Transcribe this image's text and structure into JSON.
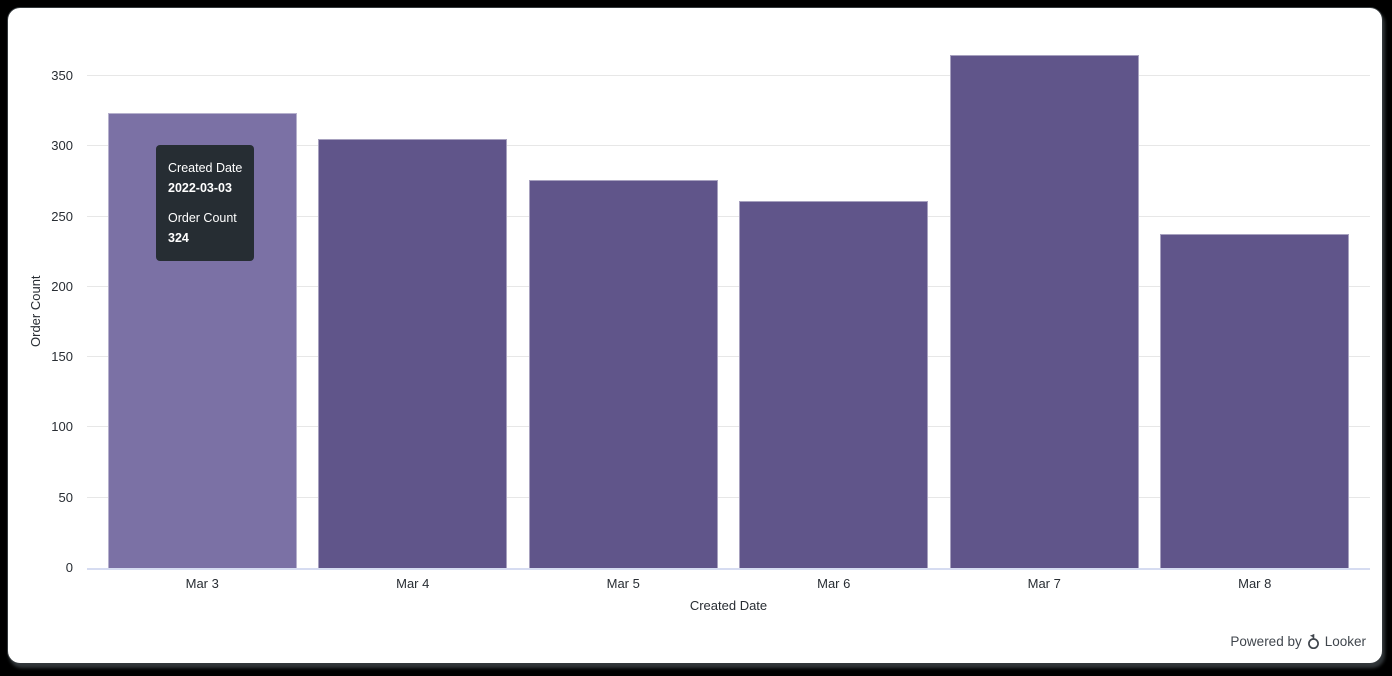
{
  "page": {
    "powered_by_label": "Powered by",
    "brand_name": "Looker"
  },
  "colors": {
    "page_bg": "#000000",
    "card_bg": "#ffffff",
    "powered_text": "#40464d"
  },
  "tooltip": {
    "dimension_label": "Created Date",
    "dimension_value": "2022-03-03",
    "measure_label": "Order Count",
    "measure_value": "324"
  },
  "chart_data": {
    "type": "bar",
    "title": "",
    "xlabel": "Created Date",
    "ylabel": "Order Count",
    "categories": [
      "Mar 3",
      "Mar 4",
      "Mar 5",
      "Mar 6",
      "Mar 7",
      "Mar 8"
    ],
    "values": [
      324,
      305,
      276,
      261,
      365,
      238
    ],
    "ylim": [
      0,
      365
    ],
    "yticks": [
      0,
      50,
      100,
      150,
      200,
      250,
      300,
      350
    ],
    "grid": true,
    "legend": "none",
    "hovered_index": 0,
    "hovered_tooltip": {
      "x": "2022-03-03",
      "y": 324
    },
    "colors": {
      "bar": "#60558a",
      "bar_hover": "#7b71a5",
      "bar_border": "#ffffff73",
      "grid": "#e7e7e7",
      "axis_line": "#d6dcf1",
      "tick_text": "#282d33",
      "tooltip_bg": "#262d33",
      "tooltip_text": "#ffffff"
    }
  }
}
